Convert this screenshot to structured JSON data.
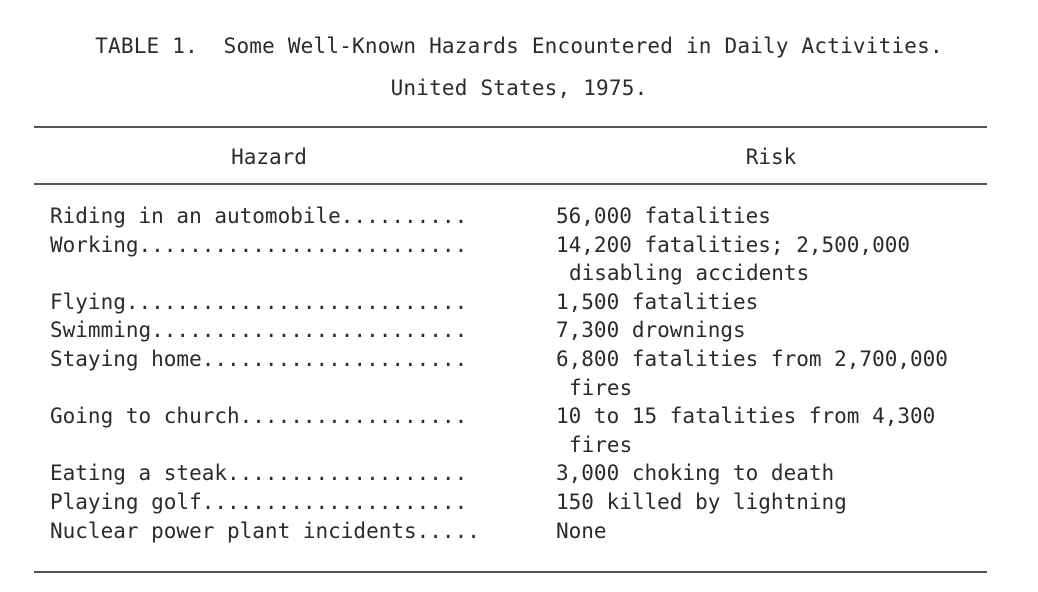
{
  "caption": {
    "line1": "TABLE 1.  Some Well-Known Hazards Encountered in Daily Activities.",
    "line2": "United States, 1975."
  },
  "columns": {
    "hazard": "Hazard",
    "risk": "Risk"
  },
  "rows": [
    {
      "hazard": "Riding in an automobile..........",
      "risk": [
        "56,000 fatalities"
      ]
    },
    {
      "hazard": "Working..........................",
      "risk": [
        "14,200 fatalities; 2,500,000",
        "disabling accidents"
      ]
    },
    {
      "hazard": "Flying...........................",
      "risk": [
        "1,500 fatalities"
      ]
    },
    {
      "hazard": "Swimming.........................",
      "risk": [
        "7,300 drownings"
      ]
    },
    {
      "hazard": "Staying home.....................",
      "risk": [
        "6,800 fatalities from 2,700,000",
        "fires"
      ]
    },
    {
      "hazard": "Going to church..................",
      "risk": [
        "10 to 15 fatalities from 4,300",
        "fires"
      ]
    },
    {
      "hazard": "Eating a steak...................",
      "risk": [
        "3,000 choking to death"
      ]
    },
    {
      "hazard": "Playing golf.....................",
      "risk": [
        "150 killed by lightning"
      ]
    },
    {
      "hazard": "Nuclear power plant incidents.....",
      "risk": [
        "None"
      ]
    }
  ]
}
